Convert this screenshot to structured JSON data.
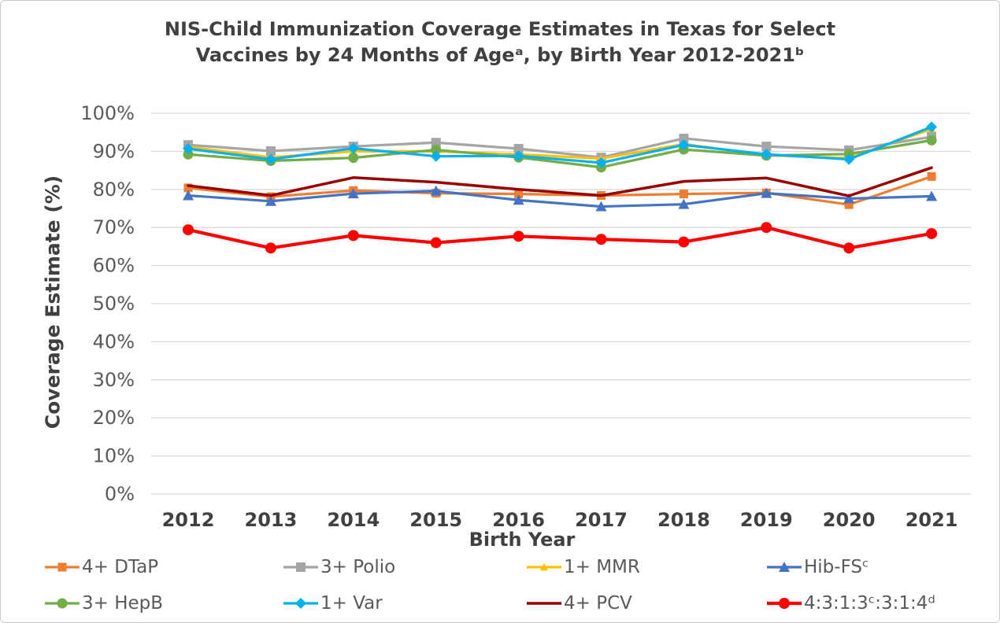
{
  "title": {
    "line1": "NIS-Child Immunization Coverage Estimates in Texas for Select",
    "line2": "Vaccines by 24 Months of Ageᵃ, by Birth Year 2012-2021ᵇ"
  },
  "chart_data": {
    "type": "line",
    "title": "NIS-Child Immunization Coverage Estimates in Texas for Select Vaccines by 24 Months of Ageᵃ, by Birth Year 2012-2021ᵇ",
    "categories": [
      "2012",
      "2013",
      "2014",
      "2015",
      "2016",
      "2017",
      "2018",
      "2019",
      "2020",
      "2021"
    ],
    "xlabel": "Birth Year",
    "ylabel": "Coverage Estimate (%)",
    "ylim": [
      0,
      100
    ],
    "y_tick_labels": [
      "0%",
      "10%",
      "20%",
      "30%",
      "40%",
      "50%",
      "60%",
      "70%",
      "80%",
      "90%",
      "100%"
    ],
    "grid": true,
    "legend_position": "bottom",
    "series": [
      {
        "name": "4+ DTaP",
        "color": "#ED7D31",
        "marker": "square",
        "marker_size": 5.5,
        "line_width": 3.2,
        "values": [
          80.4,
          78.1,
          79.7,
          79.0,
          78.8,
          78.4,
          78.8,
          79.1,
          76.0,
          83.4
        ]
      },
      {
        "name": "3+ Polio",
        "color": "#A5A5A5",
        "marker": "square",
        "marker_size": 6,
        "line_width": 3.2,
        "values": [
          91.7,
          90.1,
          91.3,
          92.3,
          90.7,
          88.4,
          93.4,
          91.3,
          90.3,
          93.8
        ]
      },
      {
        "name": "1+ MMR",
        "color": "#FFC000",
        "marker": "triangle",
        "marker_size": 5,
        "line_width": 3.2,
        "values": [
          91.2,
          88.4,
          90.0,
          90.0,
          89.2,
          88.1,
          91.9,
          89.0,
          88.2,
          95.9
        ]
      },
      {
        "name": "Hib-FSᶜ",
        "color": "#4472C4",
        "marker": "triangle",
        "marker_size": 7,
        "line_width": 3.2,
        "values": [
          78.4,
          76.9,
          78.9,
          79.6,
          77.2,
          75.5,
          76.1,
          79.0,
          77.6,
          78.2
        ]
      },
      {
        "name": "3+ HepB",
        "color": "#70AD47",
        "marker": "circle",
        "marker_size": 6.5,
        "line_width": 3.2,
        "values": [
          89.2,
          87.5,
          88.3,
          90.4,
          88.4,
          85.8,
          90.5,
          88.9,
          89.3,
          92.9
        ]
      },
      {
        "name": "1+ Var",
        "color": "#00B0F0",
        "marker": "diamond",
        "marker_size": 7,
        "line_width": 3.2,
        "values": [
          90.7,
          87.9,
          90.8,
          88.7,
          88.8,
          87.0,
          91.7,
          89.2,
          87.9,
          96.4
        ]
      },
      {
        "name": "4+ PCV",
        "color": "#990000",
        "marker": "none",
        "marker_size": 0,
        "line_width": 3.5,
        "values": [
          81.0,
          78.4,
          83.1,
          81.9,
          80.0,
          78.4,
          82.1,
          83.0,
          78.3,
          85.7
        ]
      },
      {
        "name": "4:3:1:3ᶜ:3:1:4ᵈ",
        "color": "#FF0000",
        "marker": "circle",
        "marker_size": 7,
        "line_width": 4.2,
        "values": [
          69.4,
          64.6,
          67.9,
          66.0,
          67.7,
          66.9,
          66.2,
          70.0,
          64.6,
          68.4
        ]
      }
    ]
  },
  "colors": {
    "background": "#FFFFFF",
    "grid": "#D9D9D9",
    "title_text": "#404040",
    "axis_title_text": "#404040",
    "tick_text": "#595959",
    "frame_border": "#C9C9C9"
  }
}
